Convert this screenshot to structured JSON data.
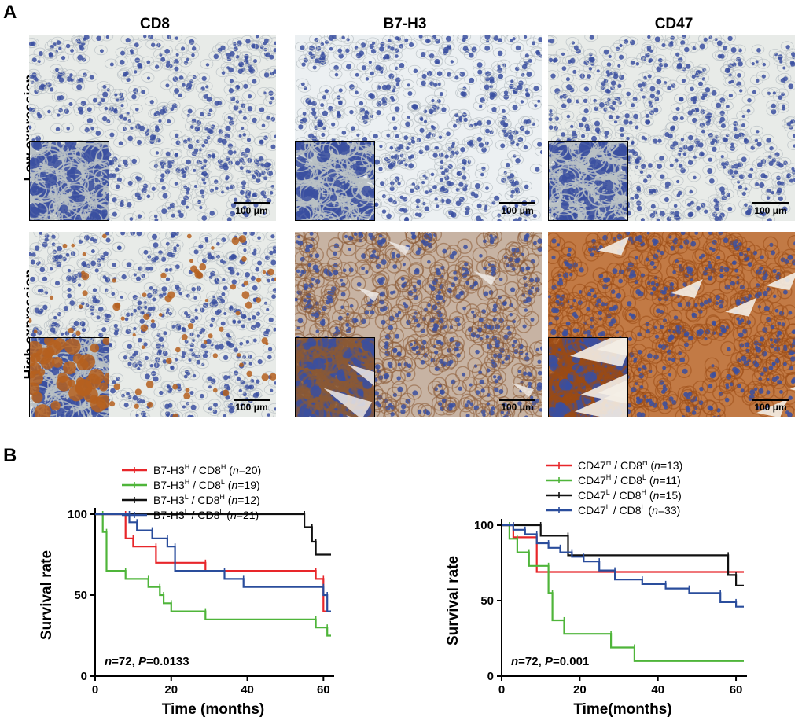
{
  "panel_a": {
    "letter": "A",
    "columns": [
      "CD8",
      "B7-H3",
      "CD47"
    ],
    "rows": [
      "Low expression",
      "High expression"
    ],
    "scale_label": "100 μm",
    "colors": {
      "low_bg": "#e8ebe8",
      "nucleus": "#3a4fa0",
      "brown": "#b5601e",
      "light_brown": "#c9905a"
    }
  },
  "panel_b": {
    "letter": "B"
  },
  "chart_data": [
    {
      "type": "line",
      "title": "",
      "xlabel": "Time (months)",
      "ylabel": "Survival rate",
      "xlim": [
        0,
        62
      ],
      "ylim": [
        0,
        100
      ],
      "xticks": [
        0,
        20,
        40,
        60
      ],
      "yticks": [
        0,
        50,
        100
      ],
      "annotation": {
        "n_label": "n",
        "n_value": "=72, ",
        "p_label": "P",
        "p_value": "=0.0133"
      },
      "legend_position": "top-right",
      "series": [
        {
          "name": "B7-H3",
          "sup1": "H",
          "mid": " / CD8",
          "sup2": "H",
          "n_label": "n",
          "n_value": "=20",
          "color": "#e8262a",
          "x": [
            0,
            8,
            8,
            10,
            10,
            16,
            16,
            29,
            29,
            58,
            58,
            60,
            60,
            62
          ],
          "y": [
            100,
            100,
            85,
            85,
            80,
            80,
            70,
            70,
            65,
            65,
            60,
            60,
            40,
            40
          ]
        },
        {
          "name": "B7-H3",
          "sup1": "H",
          "mid": " / CD8",
          "sup2": "L",
          "n_label": "n",
          "n_value": "=19",
          "color": "#4fb53a",
          "x": [
            0,
            2,
            2,
            3,
            3,
            8,
            8,
            14,
            14,
            17,
            17,
            18,
            18,
            20,
            20,
            29,
            29,
            58,
            58,
            61,
            61,
            62
          ],
          "y": [
            100,
            100,
            89,
            89,
            65,
            65,
            60,
            60,
            55,
            55,
            50,
            50,
            45,
            45,
            40,
            40,
            35,
            35,
            30,
            30,
            25,
            25
          ]
        },
        {
          "name": "B7-H3",
          "sup1": "L",
          "mid": " / CD8",
          "sup2": "H",
          "n_label": "n",
          "n_value": "=12",
          "color": "#111111",
          "x": [
            0,
            55,
            55,
            57,
            57,
            58,
            58,
            62
          ],
          "y": [
            100,
            100,
            92,
            92,
            83,
            83,
            75,
            75
          ]
        },
        {
          "name": "B7-H3",
          "sup1": "L",
          "mid": " / CD8",
          "sup2": "L",
          "n_label": "n",
          "n_value": "=21",
          "color": "#2a4d9c",
          "x": [
            0,
            9,
            9,
            11,
            11,
            15,
            15,
            19,
            19,
            21,
            21,
            34,
            34,
            39,
            39,
            60,
            60,
            61,
            61,
            62
          ],
          "y": [
            100,
            100,
            95,
            95,
            90,
            90,
            85,
            85,
            80,
            80,
            65,
            65,
            60,
            60,
            55,
            55,
            50,
            50,
            40,
            40
          ]
        }
      ]
    },
    {
      "type": "line",
      "title": "",
      "xlabel": "Time(months)",
      "ylabel": "Survival rate",
      "xlim": [
        0,
        62
      ],
      "ylim": [
        0,
        100
      ],
      "xticks": [
        0,
        20,
        40,
        60
      ],
      "yticks": [
        0,
        50,
        100
      ],
      "annotation": {
        "n_label": "n",
        "n_value": "=72, ",
        "p_label": "P",
        "p_value": "=0.001"
      },
      "legend_position": "top-right",
      "series": [
        {
          "name": "CD47",
          "sup1": "H",
          "mid": " / CD8",
          "sup2": "H",
          "n_label": "n",
          "n_value": "=13)",
          "open": "(",
          "color": "#e8262a",
          "x": [
            0,
            3,
            3,
            9,
            9,
            62
          ],
          "y": [
            100,
            100,
            92,
            92,
            69,
            69
          ]
        },
        {
          "name": "CD47",
          "sup1": "H",
          "mid": " / CD8",
          "sup2": "L",
          "n_label": "n",
          "n_value": "=11)",
          "open": "(",
          "color": "#4fb53a",
          "x": [
            0,
            2,
            2,
            4,
            4,
            7,
            7,
            12,
            12,
            13,
            13,
            16,
            16,
            28,
            28,
            34,
            34,
            62
          ],
          "y": [
            100,
            100,
            91,
            91,
            82,
            82,
            73,
            73,
            55,
            55,
            37,
            37,
            28,
            28,
            19,
            19,
            10,
            10
          ]
        },
        {
          "name": "CD47",
          "sup1": "L",
          "mid": " / CD8",
          "sup2": "H",
          "n_label": "n",
          "n_value": "=15)",
          "open": "(",
          "color": "#111111",
          "x": [
            0,
            10,
            10,
            17,
            17,
            58,
            58,
            60,
            60,
            62
          ],
          "y": [
            100,
            100,
            93,
            93,
            80,
            80,
            67,
            67,
            60,
            60
          ]
        },
        {
          "name": "CD47",
          "sup1": "L",
          "mid": " / CD8",
          "sup2": "L",
          "n_label": "n",
          "n_value": "=33)",
          "open": "(",
          "color": "#2a4d9c",
          "x": [
            0,
            3,
            3,
            6,
            6,
            9,
            9,
            12,
            12,
            15,
            15,
            18,
            18,
            21,
            21,
            25,
            25,
            29,
            29,
            36,
            36,
            42,
            42,
            48,
            48,
            56,
            56,
            60,
            60,
            62
          ],
          "y": [
            100,
            100,
            97,
            97,
            94,
            94,
            88,
            88,
            85,
            85,
            82,
            82,
            79,
            79,
            76,
            76,
            70,
            70,
            64,
            64,
            61,
            61,
            58,
            58,
            55,
            55,
            49,
            49,
            46,
            46
          ]
        }
      ]
    }
  ]
}
